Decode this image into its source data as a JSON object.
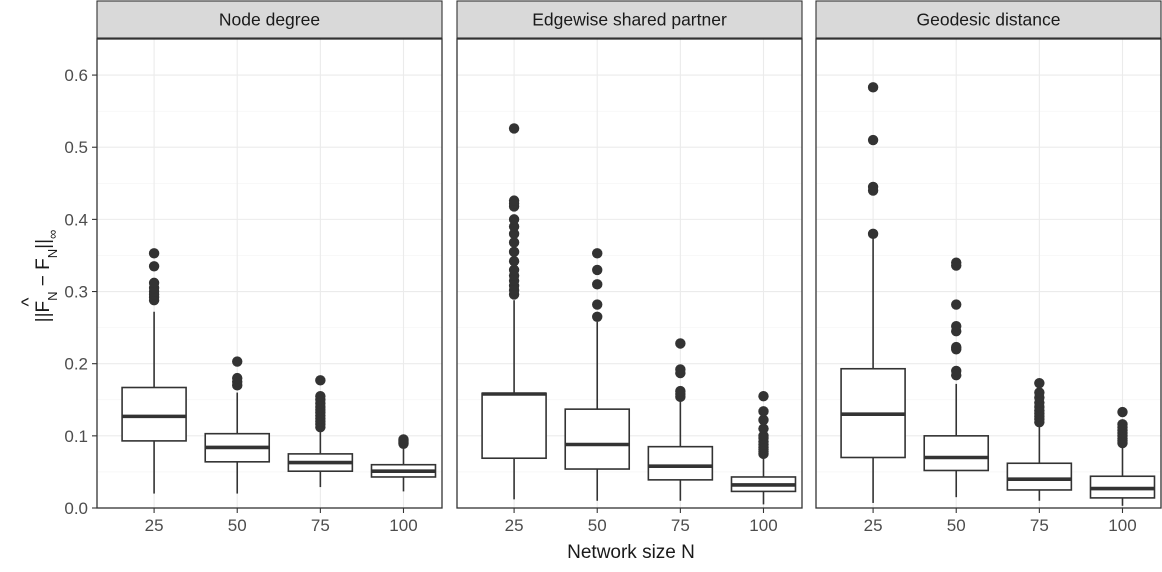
{
  "chart_data": {
    "type": "boxplot",
    "xlabel": "Network size N",
    "ylabel_parts": {
      "prefix": "||",
      "F": "F",
      "hat": "^",
      "sub": "N",
      "minus": " − ",
      "close": "||",
      "inf": "∞"
    },
    "ylim": [
      0,
      0.65
    ],
    "yticks": [
      0.0,
      0.1,
      0.2,
      0.3,
      0.4,
      0.5,
      0.6
    ],
    "ytick_labels": [
      "0.0",
      "0.1",
      "0.2",
      "0.3",
      "0.4",
      "0.5",
      "0.6"
    ],
    "categories": [
      "25",
      "50",
      "75",
      "100"
    ],
    "grid": true,
    "colors": {
      "box_stroke": "#333333",
      "strip_fill": "#d9d9d9",
      "grid": "#ebebeb"
    },
    "panels": [
      {
        "title": "Node degree",
        "boxes": [
          {
            "x": "25",
            "lower_whisker": 0.02,
            "q1": 0.093,
            "median": 0.127,
            "q3": 0.167,
            "upper_whisker": 0.272,
            "outliers": [
              0.288,
              0.292,
              0.296,
              0.3,
              0.305,
              0.312,
              0.335,
              0.353
            ]
          },
          {
            "x": "50",
            "lower_whisker": 0.02,
            "q1": 0.064,
            "median": 0.084,
            "q3": 0.103,
            "upper_whisker": 0.16,
            "outliers": [
              0.17,
              0.175,
              0.18,
              0.203
            ]
          },
          {
            "x": "75",
            "lower_whisker": 0.029,
            "q1": 0.051,
            "median": 0.063,
            "q3": 0.075,
            "upper_whisker": 0.108,
            "outliers": [
              0.112,
              0.116,
              0.12,
              0.124,
              0.128,
              0.132,
              0.136,
              0.14,
              0.145,
              0.15,
              0.155,
              0.177
            ]
          },
          {
            "x": "100",
            "lower_whisker": 0.023,
            "q1": 0.043,
            "median": 0.051,
            "q3": 0.06,
            "upper_whisker": 0.085,
            "outliers": [
              0.089,
              0.091,
              0.093,
              0.095
            ]
          }
        ]
      },
      {
        "title": "Edgewise shared partner",
        "boxes": [
          {
            "x": "25",
            "lower_whisker": 0.012,
            "q1": 0.069,
            "median": 0.158,
            "q3": 0.159,
            "upper_whisker": 0.288,
            "outliers": [
              0.296,
              0.302,
              0.308,
              0.315,
              0.322,
              0.33,
              0.342,
              0.355,
              0.368,
              0.38,
              0.39,
              0.4,
              0.418,
              0.422,
              0.426,
              0.526
            ]
          },
          {
            "x": "50",
            "lower_whisker": 0.01,
            "q1": 0.054,
            "median": 0.088,
            "q3": 0.137,
            "upper_whisker": 0.258,
            "outliers": [
              0.265,
              0.282,
              0.31,
              0.33,
              0.353
            ]
          },
          {
            "x": "75",
            "lower_whisker": 0.01,
            "q1": 0.039,
            "median": 0.058,
            "q3": 0.085,
            "upper_whisker": 0.15,
            "outliers": [
              0.154,
              0.158,
              0.162,
              0.187,
              0.192,
              0.228
            ]
          },
          {
            "x": "100",
            "lower_whisker": 0.005,
            "q1": 0.023,
            "median": 0.032,
            "q3": 0.043,
            "upper_whisker": 0.072,
            "outliers": [
              0.075,
              0.078,
              0.081,
              0.084,
              0.088,
              0.092,
              0.097,
              0.1,
              0.11,
              0.122,
              0.134,
              0.155
            ]
          }
        ]
      },
      {
        "title": "Geodesic distance",
        "boxes": [
          {
            "x": "25",
            "lower_whisker": 0.007,
            "q1": 0.07,
            "median": 0.13,
            "q3": 0.193,
            "upper_whisker": 0.38,
            "outliers": [
              0.38,
              0.44,
              0.445,
              0.51,
              0.583
            ]
          },
          {
            "x": "50",
            "lower_whisker": 0.015,
            "q1": 0.052,
            "median": 0.07,
            "q3": 0.1,
            "upper_whisker": 0.172,
            "outliers": [
              0.184,
              0.19,
              0.22,
              0.223,
              0.245,
              0.252,
              0.282,
              0.336,
              0.34
            ]
          },
          {
            "x": "75",
            "lower_whisker": 0.01,
            "q1": 0.025,
            "median": 0.04,
            "q3": 0.062,
            "upper_whisker": 0.115,
            "outliers": [
              0.119,
              0.123,
              0.127,
              0.131,
              0.135,
              0.14,
              0.146,
              0.153,
              0.16,
              0.173
            ]
          },
          {
            "x": "100",
            "lower_whisker": 0.003,
            "q1": 0.014,
            "median": 0.027,
            "q3": 0.044,
            "upper_whisker": 0.087,
            "outliers": [
              0.09,
              0.093,
              0.096,
              0.1,
              0.104,
              0.108,
              0.112,
              0.116,
              0.133
            ]
          }
        ]
      }
    ]
  }
}
